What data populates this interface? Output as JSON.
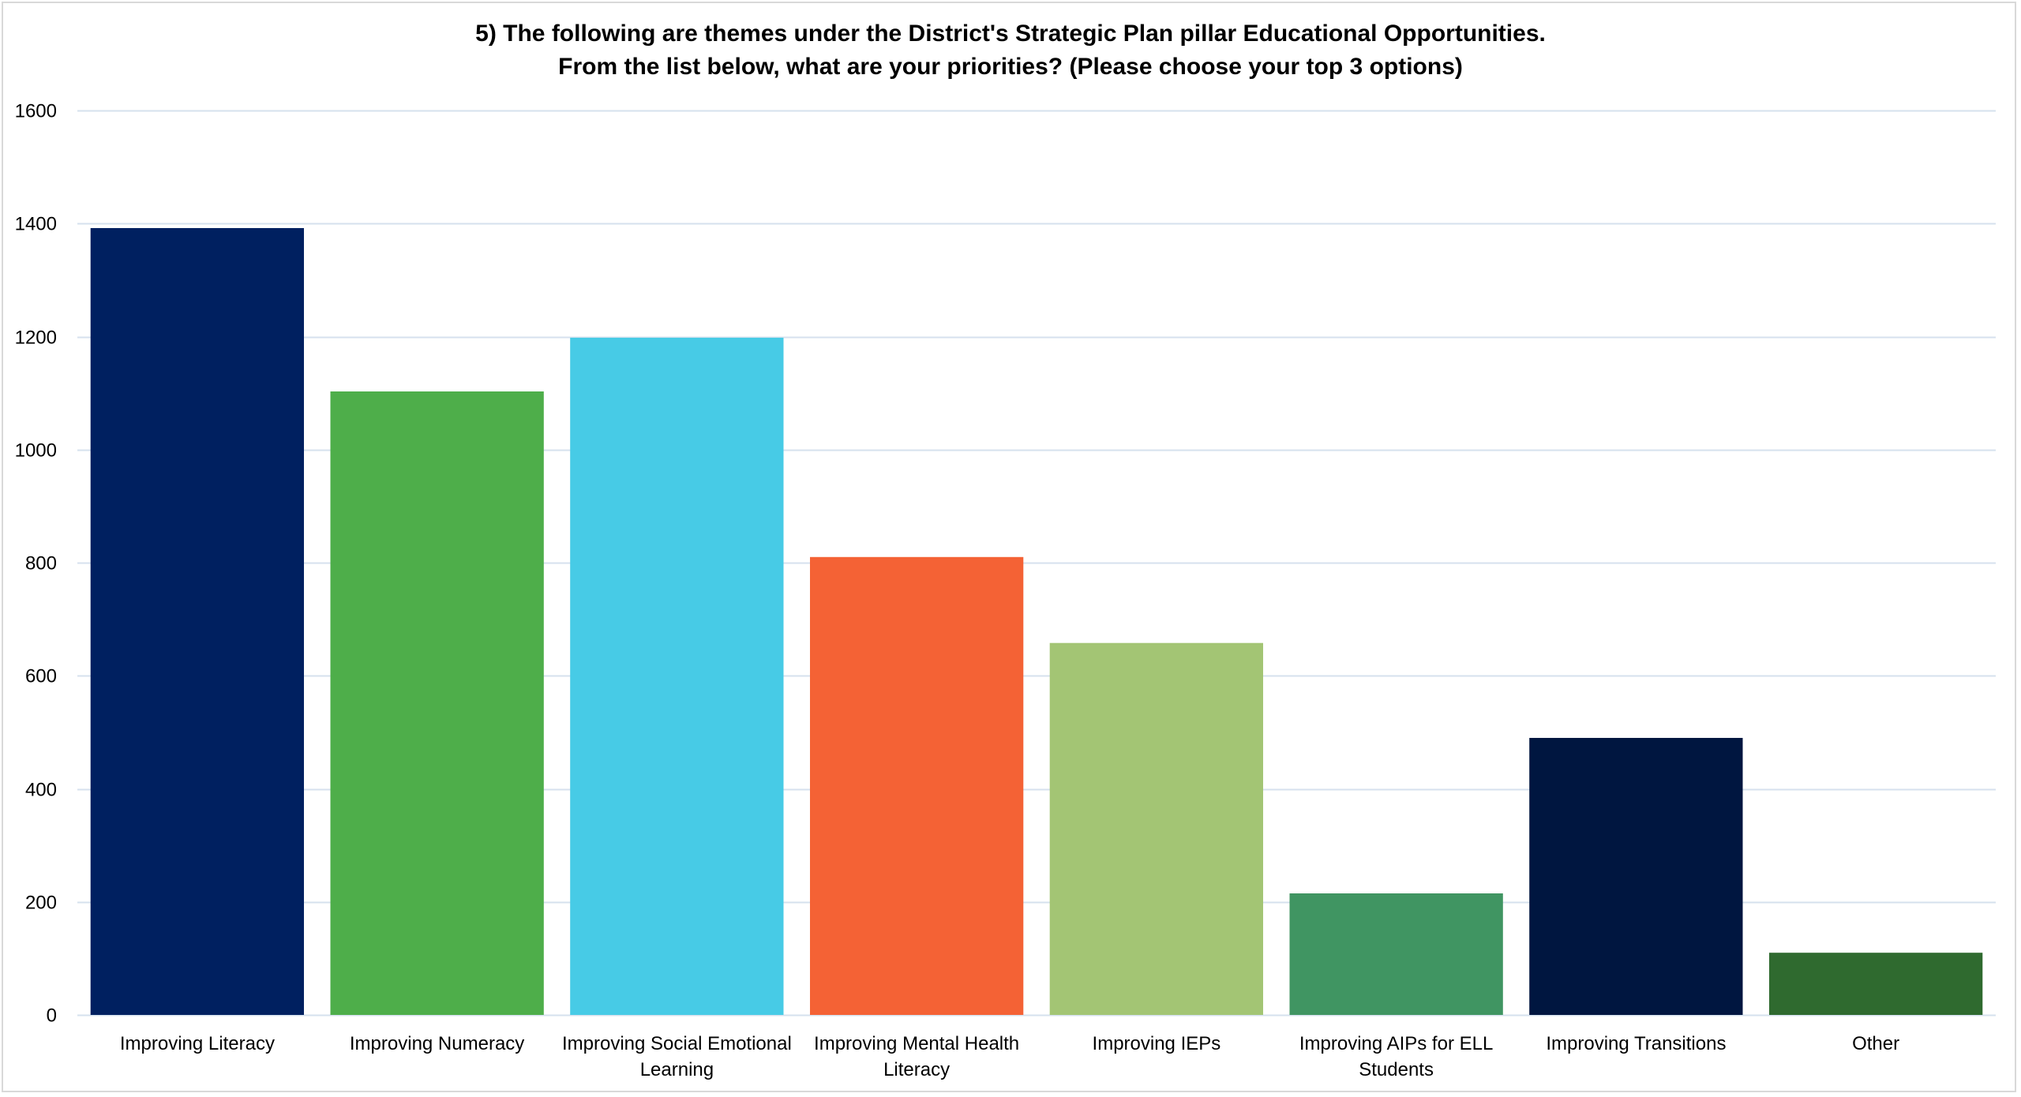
{
  "chart_data": {
    "type": "bar",
    "title_lines": [
      "5) The following are themes under the District's Strategic Plan pillar Educational Opportunities.",
      "From the list below, what are your priorities? (Please choose your top 3 options)"
    ],
    "categories": [
      [
        "Improving Literacy"
      ],
      [
        "Improving Numeracy"
      ],
      [
        "Improving Social Emotional",
        "Learning"
      ],
      [
        "Improving Mental Health",
        "Literacy"
      ],
      [
        "Improving IEPs"
      ],
      [
        "Improving AIPs for ELL",
        "Students"
      ],
      [
        "Improving Transitions"
      ],
      [
        "Other"
      ]
    ],
    "values": [
      1392,
      1103,
      1198,
      810,
      658,
      215,
      490,
      110
    ],
    "colors": [
      "#002060",
      "#4EAE4A",
      "#47CBE6",
      "#F46235",
      "#A3C574",
      "#409562",
      "#001640",
      "#2F6A2F"
    ],
    "xlabel": "",
    "ylabel": "",
    "ylim": [
      0,
      1600
    ],
    "yticks": [
      0,
      200,
      400,
      600,
      800,
      1000,
      1200,
      1400,
      1600
    ],
    "grid": true,
    "legend": "none",
    "gridline_color": "#D6E1EE"
  }
}
